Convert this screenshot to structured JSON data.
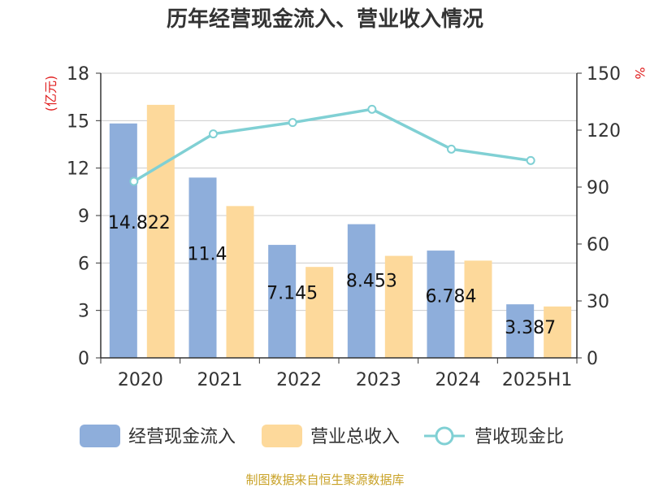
{
  "chart_data": {
    "type": "bar",
    "title": "历年经营现金流入、营业收入情况",
    "categories": [
      "2020",
      "2021",
      "2022",
      "2023",
      "2024",
      "2025H1"
    ],
    "y_left": {
      "unit": "(亿元)",
      "range": [
        0,
        18
      ],
      "ticks": [
        "0",
        "3",
        "6",
        "9",
        "12",
        "15",
        "18"
      ]
    },
    "y_right": {
      "unit": "%",
      "range": [
        0,
        150
      ],
      "ticks": [
        "0",
        "30",
        "60",
        "90",
        "120",
        "150"
      ]
    },
    "series": [
      {
        "name": "经营现金流入",
        "kind": "bar",
        "axis": "left",
        "color": "#8eaedb",
        "values": [
          14.822,
          11.4,
          7.145,
          8.453,
          6.784,
          3.387
        ],
        "labels": [
          "14.822",
          "11.4",
          "7.145",
          "8.453",
          "6.784",
          "3.387"
        ]
      },
      {
        "name": "营业总收入",
        "kind": "bar",
        "axis": "left",
        "color": "#fdd99b",
        "values": [
          16.0,
          9.6,
          5.75,
          6.45,
          6.15,
          3.25
        ]
      },
      {
        "name": "营收现金比",
        "kind": "line",
        "axis": "right",
        "color": "#80d0d4",
        "values": [
          93,
          118,
          124,
          131,
          110,
          104
        ]
      }
    ],
    "grid": true,
    "legend": "bottom"
  },
  "source_text": "制图数据来自恒生聚源数据库"
}
